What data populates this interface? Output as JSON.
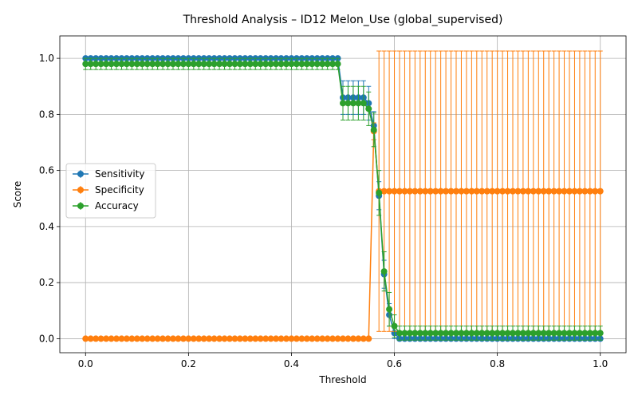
{
  "chart_data": {
    "type": "line",
    "title": "Threshold Analysis – ID12 Melon_Use (global_supervised)",
    "xlabel": "Threshold",
    "ylabel": "Score",
    "xlim": [
      -0.05,
      1.05
    ],
    "ylim": [
      -0.05,
      1.08
    ],
    "xticks": [
      "0.0",
      "0.2",
      "0.4",
      "0.6",
      "0.8",
      "1.0"
    ],
    "yticks": [
      "0.0",
      "0.2",
      "0.4",
      "0.6",
      "0.8",
      "1.0"
    ],
    "grid": true,
    "legend_position": "center-left",
    "x": {
      "start": 0,
      "stop": 1,
      "count": 101
    },
    "series": [
      {
        "name": "Sensitivity",
        "color": "#1f77b4",
        "segments": [
          {
            "from": 0.0,
            "to": 0.49,
            "y": 1.0,
            "err": 0.0
          },
          {
            "from": 0.5,
            "to": 0.54,
            "y": 0.86,
            "err": 0.06
          },
          {
            "from": 0.55,
            "to": 0.55,
            "y": 0.84,
            "err": 0.06
          },
          {
            "from": 0.56,
            "to": 0.56,
            "y": 0.76,
            "err": 0.05
          },
          {
            "from": 0.57,
            "to": 0.57,
            "y": 0.51,
            "err": 0.05
          },
          {
            "from": 0.58,
            "to": 0.58,
            "y": 0.23,
            "err": 0.05
          },
          {
            "from": 0.59,
            "to": 0.59,
            "y": 0.085,
            "err": 0.04
          },
          {
            "from": 0.6,
            "to": 0.6,
            "y": 0.02,
            "err": 0.02
          },
          {
            "from": 0.61,
            "to": 1.0,
            "y": 0.0,
            "err": 0.0
          }
        ]
      },
      {
        "name": "Specificity",
        "color": "#ff7f0e",
        "segments": [
          {
            "from": 0.0,
            "to": 0.56,
            "y": 0.0,
            "err": 0.0
          },
          {
            "from": 0.56,
            "to": 0.56,
            "y": 0.74,
            "err": 0.03
          },
          {
            "from": 0.57,
            "to": 1.0,
            "y": 0.526,
            "err": 0.5
          }
        ]
      },
      {
        "name": "Accuracy",
        "color": "#2ca02c",
        "segments": [
          {
            "from": 0.0,
            "to": 0.49,
            "y": 0.98,
            "err": 0.02
          },
          {
            "from": 0.5,
            "to": 0.54,
            "y": 0.84,
            "err": 0.06
          },
          {
            "from": 0.55,
            "to": 0.55,
            "y": 0.82,
            "err": 0.06
          },
          {
            "from": 0.56,
            "to": 0.56,
            "y": 0.745,
            "err": 0.06
          },
          {
            "from": 0.57,
            "to": 0.57,
            "y": 0.52,
            "err": 0.08
          },
          {
            "from": 0.58,
            "to": 0.58,
            "y": 0.24,
            "err": 0.07
          },
          {
            "from": 0.59,
            "to": 0.59,
            "y": 0.105,
            "err": 0.06
          },
          {
            "from": 0.6,
            "to": 0.6,
            "y": 0.045,
            "err": 0.04
          },
          {
            "from": 0.61,
            "to": 1.0,
            "y": 0.02,
            "err": 0.025
          }
        ]
      }
    ]
  }
}
